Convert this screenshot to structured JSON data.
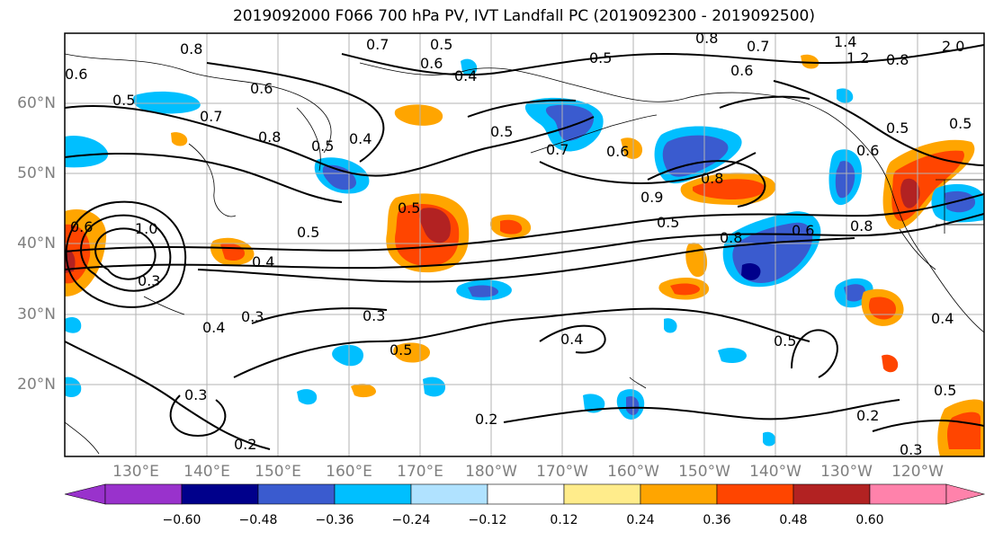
{
  "title": "2019092000 F066 700 hPa PV, IVT Landfall PC (2019092300 - 2019092500)",
  "lon_labels": [
    "130°E",
    "140°E",
    "150°E",
    "160°E",
    "170°E",
    "180°W",
    "170°W",
    "160°W",
    "150°W",
    "140°W",
    "130°W",
    "120°W"
  ],
  "lat_labels": [
    "60°N",
    "50°N",
    "40°N",
    "30°N",
    "20°N"
  ],
  "contour_labels": [
    "0.8",
    "0.5",
    "0.7",
    "0.8",
    "0.7",
    "1.4",
    "2.0",
    "0.6",
    "0.6",
    "0.4",
    "0.5",
    "0.6",
    "1.2",
    "0.8",
    "0.5",
    "0.7",
    "0.6",
    "0.8",
    "0.5",
    "0.4",
    "0.5",
    "0.7",
    "0.6",
    "0.5",
    "0.5",
    "0.6",
    "0.8",
    "0.9",
    "0.5",
    "0.5",
    "0.6",
    "0.8",
    "0.6",
    "0.8",
    "0.5",
    "1.0",
    "0.3",
    "0.4",
    "0.3",
    "0.5",
    "0.4",
    "0.5",
    "0.4",
    "0.3",
    "0.4",
    "0.2",
    "0.3",
    "0.2",
    "0.2",
    "0.3",
    "0.5"
  ],
  "colorbar": {
    "ticks": [
      "−0.60",
      "−0.48",
      "−0.36",
      "−0.24",
      "−0.12",
      "0.12",
      "0.24",
      "0.36",
      "0.48",
      "0.60"
    ],
    "colors": [
      "#9932cc",
      "#00008b",
      "#3a5bcf",
      "#00bfff",
      "#b0e2ff",
      "#ffffff",
      "#ffec8b",
      "#ffa500",
      "#ff4500",
      "#b22222",
      "#ff82ab"
    ]
  }
}
